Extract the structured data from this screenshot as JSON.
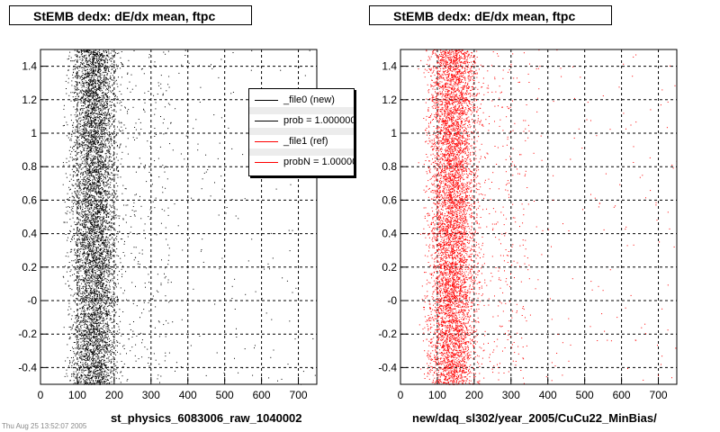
{
  "footer_note": "Thu Aug 25 13:52:07 2005",
  "chart_data": [
    {
      "type": "scatter",
      "title": "StEMB dedx: dE/dx mean, ftpc",
      "xlabel": "st_physics_6083006_raw_1040002",
      "ylabel": "",
      "xlim": [
        0,
        750
      ],
      "ylim": [
        -0.5,
        1.5
      ],
      "xticks": [
        0,
        100,
        200,
        300,
        400,
        500,
        600,
        700
      ],
      "xtick_labels": [
        "0",
        "100",
        "200",
        "300",
        "400",
        "500",
        "600",
        "700"
      ],
      "yticks": [
        -0.4,
        -0.2,
        0,
        0.2,
        0.4,
        0.6,
        0.8,
        1,
        1.2,
        1.4
      ],
      "ytick_labels": [
        "-0.4",
        "-0.2",
        "-0",
        "0.2",
        "0.4",
        "0.6",
        "0.8",
        "1",
        "1.2",
        "1.4"
      ],
      "grid": true,
      "color": "#000000",
      "distribution": {
        "x_center": 145,
        "x_spread": 28,
        "tail_to": 350
      },
      "legend": {
        "placement": "top-right",
        "entries": [
          {
            "label": "_file0 (new)",
            "color": "#000000"
          },
          {
            "label": "prob = 1.000000",
            "color": "#000000"
          },
          {
            "label": "_file1 (ref)",
            "color": "#ff0000"
          },
          {
            "label": "probN = 1.000000",
            "color": "#ff0000"
          }
        ]
      }
    },
    {
      "type": "scatter",
      "title": "StEMB dedx: dE/dx mean, ftpc",
      "xlabel": "new/daq_sl302/year_2005/CuCu22_MinBias/",
      "ylabel": "",
      "xlim": [
        0,
        750
      ],
      "ylim": [
        -0.5,
        1.5
      ],
      "xticks": [
        0,
        100,
        200,
        300,
        400,
        500,
        600,
        700
      ],
      "xtick_labels": [
        "0",
        "100",
        "200",
        "300",
        "400",
        "500",
        "600",
        "700"
      ],
      "yticks": [
        -0.4,
        -0.2,
        0,
        0.2,
        0.4,
        0.6,
        0.8,
        1,
        1.2,
        1.4
      ],
      "ytick_labels": [
        "-0.4",
        "-0.2",
        "-0",
        "0.2",
        "0.4",
        "0.6",
        "0.8",
        "1",
        "1.2",
        "1.4"
      ],
      "grid": true,
      "color": "#ff0000",
      "distribution": {
        "x_center": 140,
        "x_spread": 30,
        "tail_to": 350
      }
    }
  ]
}
